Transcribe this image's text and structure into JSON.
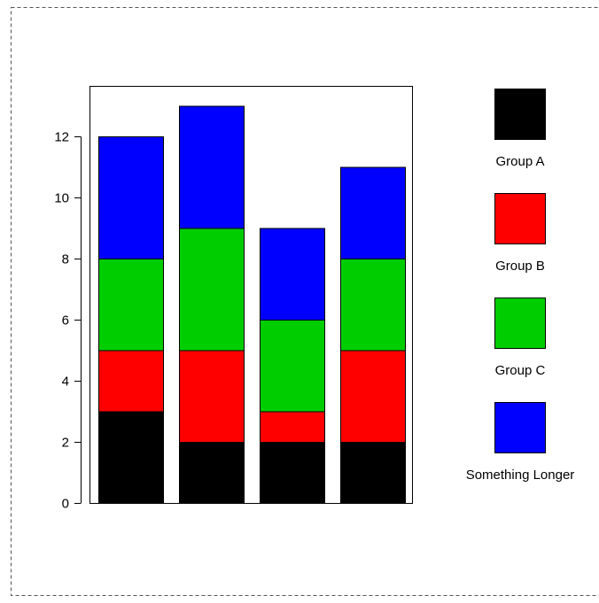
{
  "chart_data": {
    "type": "bar",
    "stacked": true,
    "title": "",
    "xlabel": "",
    "ylabel": "",
    "categories": [
      "",
      "",
      "",
      ""
    ],
    "ylim": [
      0,
      13.7
    ],
    "yticks": [
      0,
      2,
      4,
      6,
      8,
      10,
      12
    ],
    "grid": false,
    "legend_position": "right",
    "series": [
      {
        "name": "Group A",
        "color": "#000000",
        "values": [
          3,
          2,
          2,
          2
        ]
      },
      {
        "name": "Group B",
        "color": "#ff0000",
        "values": [
          2,
          3,
          1,
          3
        ]
      },
      {
        "name": "Group C",
        "color": "#00cd00",
        "values": [
          3,
          4,
          3,
          3
        ]
      },
      {
        "name": "Something Longer",
        "color": "#0000ff",
        "values": [
          4,
          4,
          3,
          3
        ]
      }
    ]
  }
}
